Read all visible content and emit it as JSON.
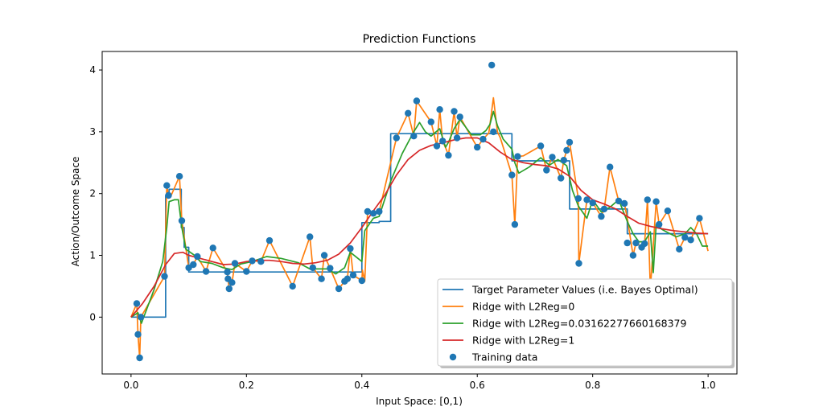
{
  "chart_data": {
    "type": "line",
    "title": "Prediction Functions",
    "xlabel": "Input Space: [0,1)",
    "ylabel": "Action/Outcome Space",
    "xlim": [
      -0.05,
      1.05
    ],
    "ylim": [
      -0.92,
      4.3
    ],
    "xticks": [
      "0.0",
      "0.2",
      "0.4",
      "0.6",
      "0.8",
      "1.0"
    ],
    "xtick_values": [
      0.0,
      0.2,
      0.4,
      0.6,
      0.8,
      1.0
    ],
    "yticks": [
      "0",
      "1",
      "2",
      "3",
      "4"
    ],
    "ytick_values": [
      0,
      1,
      2,
      3,
      4
    ],
    "grid": false,
    "legend_position": "lower-right",
    "series": [
      {
        "name": "Target Parameter Values (i.e. Bayes Optimal)",
        "color": "#1f77b4",
        "style": "step",
        "x": [
          0.0,
          0.06,
          0.06,
          0.066,
          0.066,
          0.087,
          0.087,
          0.092,
          0.092,
          0.1,
          0.1,
          0.4,
          0.4,
          0.43,
          0.43,
          0.45,
          0.45,
          0.66,
          0.66,
          0.76,
          0.76,
          0.86,
          0.86,
          1.0
        ],
        "y": [
          0.0,
          0.0,
          1.97,
          1.97,
          2.07,
          2.07,
          1.45,
          1.45,
          1.13,
          1.13,
          0.73,
          0.73,
          1.53,
          1.53,
          1.55,
          1.55,
          2.97,
          2.97,
          2.53,
          2.53,
          1.75,
          1.75,
          1.35,
          1.35
        ]
      },
      {
        "name": "Ridge with L2Reg=0",
        "color": "#ff7f0e",
        "style": "line",
        "x": [
          0.0,
          0.01,
          0.012,
          0.015,
          0.017,
          0.058,
          0.062,
          0.065,
          0.07,
          0.084,
          0.088,
          0.1,
          0.108,
          0.115,
          0.13,
          0.142,
          0.167,
          0.168,
          0.17,
          0.175,
          0.18,
          0.2,
          0.21,
          0.225,
          0.24,
          0.28,
          0.31,
          0.315,
          0.33,
          0.335,
          0.345,
          0.36,
          0.37,
          0.375,
          0.38,
          0.385,
          0.4,
          0.401,
          0.405,
          0.41,
          0.42,
          0.43,
          0.46,
          0.48,
          0.49,
          0.495,
          0.52,
          0.53,
          0.535,
          0.54,
          0.547,
          0.55,
          0.56,
          0.565,
          0.57,
          0.6,
          0.61,
          0.62,
          0.628,
          0.635,
          0.64,
          0.66,
          0.665,
          0.67,
          0.68,
          0.71,
          0.72,
          0.73,
          0.745,
          0.75,
          0.755,
          0.76,
          0.775,
          0.776,
          0.79,
          0.8,
          0.815,
          0.82,
          0.83,
          0.845,
          0.855,
          0.86,
          0.87,
          0.875,
          0.885,
          0.89,
          0.895,
          0.9,
          0.91,
          0.915,
          0.93,
          0.95,
          0.96,
          0.97,
          0.985,
          1.0
        ],
        "y": [
          0.0,
          0.22,
          -0.28,
          -0.66,
          0.0,
          0.66,
          2.13,
          1.97,
          1.98,
          2.28,
          1.56,
          0.8,
          0.85,
          0.98,
          0.74,
          1.12,
          0.73,
          0.62,
          0.46,
          0.56,
          0.87,
          0.74,
          0.91,
          0.9,
          1.24,
          0.5,
          1.3,
          0.8,
          0.62,
          1.0,
          0.79,
          0.46,
          0.58,
          0.62,
          1.11,
          0.68,
          0.59,
          0.76,
          0.58,
          1.71,
          1.68,
          1.71,
          2.9,
          3.3,
          2.93,
          3.5,
          3.16,
          2.77,
          3.36,
          2.85,
          2.7,
          2.62,
          3.33,
          2.9,
          3.24,
          2.75,
          2.88,
          2.98,
          3.55,
          3.0,
          2.9,
          2.3,
          1.5,
          2.6,
          2.61,
          2.77,
          2.38,
          2.59,
          2.25,
          2.54,
          2.7,
          2.83,
          1.92,
          0.87,
          1.9,
          1.85,
          1.63,
          1.75,
          2.43,
          1.88,
          1.84,
          1.6,
          1.0,
          1.2,
          1.13,
          1.19,
          1.9,
          0.45,
          1.87,
          1.5,
          1.72,
          1.1,
          1.29,
          1.25,
          1.6,
          1.07
        ]
      },
      {
        "name": "Ridge with L2Reg=0.03162277660168379",
        "color": "#2ca02c",
        "style": "line",
        "x": [
          0.0,
          0.012,
          0.018,
          0.04,
          0.055,
          0.062,
          0.066,
          0.075,
          0.082,
          0.088,
          0.095,
          0.11,
          0.12,
          0.14,
          0.16,
          0.175,
          0.19,
          0.21,
          0.235,
          0.26,
          0.29,
          0.31,
          0.34,
          0.355,
          0.37,
          0.38,
          0.4,
          0.405,
          0.42,
          0.43,
          0.45,
          0.47,
          0.49,
          0.5,
          0.51,
          0.52,
          0.535,
          0.545,
          0.55,
          0.56,
          0.57,
          0.59,
          0.605,
          0.615,
          0.622,
          0.628,
          0.635,
          0.645,
          0.66,
          0.665,
          0.672,
          0.69,
          0.71,
          0.725,
          0.74,
          0.755,
          0.765,
          0.775,
          0.79,
          0.8,
          0.815,
          0.83,
          0.845,
          0.86,
          0.87,
          0.88,
          0.89,
          0.9,
          0.905,
          0.91,
          0.92,
          0.93,
          0.945,
          0.96,
          0.97,
          0.98,
          0.99,
          1.0
        ],
        "y": [
          0.0,
          0.07,
          -0.1,
          0.45,
          0.9,
          1.45,
          1.87,
          1.9,
          1.9,
          1.45,
          1.1,
          1.0,
          0.9,
          0.87,
          0.8,
          0.77,
          0.86,
          0.9,
          0.98,
          0.95,
          0.88,
          0.78,
          0.78,
          0.7,
          0.8,
          1.05,
          0.9,
          1.4,
          1.6,
          1.63,
          2.2,
          2.65,
          3.0,
          3.15,
          3.0,
          2.93,
          3.05,
          2.75,
          2.83,
          3.05,
          3.2,
          2.95,
          2.95,
          3.02,
          3.12,
          3.33,
          3.1,
          2.88,
          2.72,
          2.5,
          2.33,
          2.43,
          2.58,
          2.46,
          2.55,
          2.45,
          2.05,
          1.8,
          1.6,
          1.9,
          1.7,
          1.78,
          1.9,
          1.55,
          1.35,
          1.22,
          1.22,
          1.38,
          0.72,
          1.5,
          1.42,
          1.37,
          1.3,
          1.35,
          1.45,
          1.35,
          1.15,
          1.15
        ]
      },
      {
        "name": "Ridge with L2Reg=1",
        "color": "#d62728",
        "style": "line",
        "x": [
          0.0,
          0.02,
          0.04,
          0.06,
          0.075,
          0.09,
          0.1,
          0.12,
          0.14,
          0.16,
          0.18,
          0.2,
          0.22,
          0.24,
          0.26,
          0.28,
          0.3,
          0.32,
          0.34,
          0.36,
          0.38,
          0.4,
          0.42,
          0.44,
          0.46,
          0.48,
          0.5,
          0.52,
          0.54,
          0.56,
          0.58,
          0.6,
          0.62,
          0.64,
          0.66,
          0.68,
          0.7,
          0.72,
          0.74,
          0.76,
          0.78,
          0.8,
          0.82,
          0.84,
          0.86,
          0.88,
          0.9,
          0.92,
          0.94,
          0.96,
          0.98,
          1.0
        ],
        "y": [
          0.0,
          0.22,
          0.5,
          0.85,
          1.03,
          1.05,
          1.0,
          0.95,
          0.9,
          0.85,
          0.86,
          0.9,
          0.92,
          0.92,
          0.9,
          0.87,
          0.86,
          0.88,
          0.92,
          1.02,
          1.2,
          1.45,
          1.72,
          1.98,
          2.3,
          2.55,
          2.7,
          2.78,
          2.82,
          2.87,
          2.9,
          2.9,
          2.82,
          2.67,
          2.55,
          2.5,
          2.47,
          2.45,
          2.4,
          2.28,
          2.05,
          1.9,
          1.83,
          1.75,
          1.63,
          1.52,
          1.47,
          1.43,
          1.4,
          1.38,
          1.36,
          1.35
        ]
      }
    ],
    "training_data": {
      "name": "Training data",
      "color": "#1f77b4",
      "x": [
        0.01,
        0.012,
        0.015,
        0.017,
        0.058,
        0.062,
        0.065,
        0.084,
        0.088,
        0.1,
        0.108,
        0.115,
        0.13,
        0.142,
        0.167,
        0.168,
        0.17,
        0.175,
        0.18,
        0.2,
        0.21,
        0.225,
        0.24,
        0.28,
        0.31,
        0.315,
        0.33,
        0.335,
        0.345,
        0.36,
        0.37,
        0.375,
        0.38,
        0.385,
        0.4,
        0.41,
        0.42,
        0.43,
        0.46,
        0.48,
        0.49,
        0.495,
        0.52,
        0.53,
        0.535,
        0.54,
        0.55,
        0.56,
        0.565,
        0.57,
        0.6,
        0.61,
        0.625,
        0.628,
        0.66,
        0.665,
        0.67,
        0.71,
        0.72,
        0.73,
        0.745,
        0.75,
        0.755,
        0.76,
        0.775,
        0.776,
        0.79,
        0.8,
        0.815,
        0.82,
        0.83,
        0.845,
        0.855,
        0.86,
        0.87,
        0.875,
        0.885,
        0.89,
        0.895,
        0.91,
        0.915,
        0.93,
        0.95,
        0.96,
        0.97,
        0.985
      ],
      "y": [
        0.22,
        -0.28,
        -0.66,
        0.0,
        0.66,
        2.13,
        1.97,
        2.28,
        1.56,
        0.8,
        0.85,
        0.98,
        0.74,
        1.12,
        0.73,
        0.62,
        0.46,
        0.56,
        0.87,
        0.74,
        0.91,
        0.9,
        1.24,
        0.5,
        1.3,
        0.8,
        0.62,
        1.0,
        0.79,
        0.46,
        0.58,
        0.62,
        1.11,
        0.68,
        0.59,
        1.71,
        1.68,
        1.71,
        2.9,
        3.3,
        2.93,
        3.5,
        3.16,
        2.77,
        3.36,
        2.85,
        2.62,
        3.33,
        2.9,
        3.24,
        2.75,
        2.88,
        4.08,
        3.0,
        2.3,
        1.5,
        2.6,
        2.77,
        2.38,
        2.59,
        2.25,
        2.54,
        2.7,
        2.83,
        1.92,
        0.87,
        1.9,
        1.85,
        1.63,
        1.75,
        2.43,
        1.88,
        1.84,
        1.2,
        1.0,
        1.2,
        1.13,
        1.19,
        1.9,
        1.87,
        1.5,
        1.72,
        1.1,
        1.29,
        1.25,
        1.6
      ]
    }
  }
}
